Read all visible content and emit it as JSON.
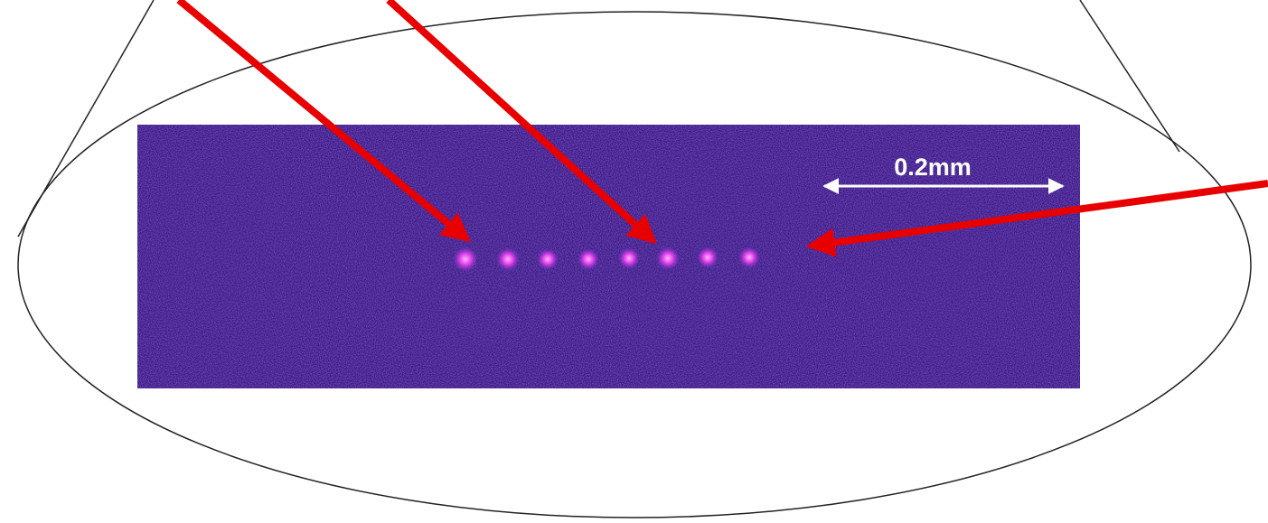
{
  "scale_bar": {
    "label": "0.2mm"
  }
}
